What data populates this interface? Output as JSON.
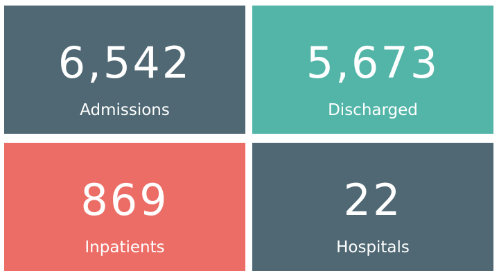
{
  "cards": [
    {
      "value": "6,542",
      "label": "Admissions",
      "color": "#4f6873"
    },
    {
      "value": "5,673",
      "label": "Discharged",
      "color": "#53b5a8"
    },
    {
      "value": "869",
      "label": "Inpatients",
      "color": "#ec6d66"
    },
    {
      "value": "22",
      "label": "Hospitals",
      "color": "#4f6873"
    }
  ]
}
